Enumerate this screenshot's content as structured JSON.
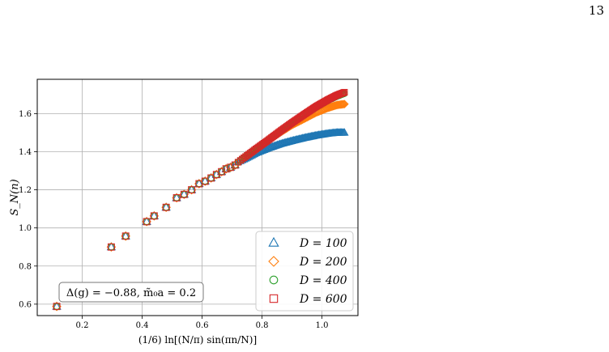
{
  "page_number": "13",
  "chart_data": {
    "type": "scatter",
    "title": "",
    "xlabel": "(1/6) ln[(N/π) sin(πn/N)]",
    "ylabel": "S_N(n)",
    "xlim": [
      0.05,
      1.12
    ],
    "ylim": [
      0.54,
      1.78
    ],
    "xticks": [
      0.2,
      0.4,
      0.6,
      0.8,
      1.0
    ],
    "yticks": [
      0.6,
      0.8,
      1.0,
      1.2,
      1.4,
      1.6
    ],
    "xtick_labels": [
      "0.2",
      "0.4",
      "0.6",
      "0.8",
      "1.0"
    ],
    "ytick_labels": [
      "0.6",
      "0.8",
      "1.0",
      "1.2",
      "1.4",
      "1.6"
    ],
    "grid": true,
    "legend_position": "lower-right",
    "annotation": "Δ(g) = −0.88, m̃₀a = 0.2",
    "common_points": {
      "x": [
        0.115,
        0.297,
        0.345,
        0.415,
        0.44,
        0.48,
        0.515,
        0.54,
        0.565,
        0.59,
        0.61,
        0.63,
        0.648,
        0.665,
        0.68,
        0.695,
        0.71
      ],
      "y": [
        0.588,
        0.9,
        0.957,
        1.033,
        1.063,
        1.108,
        1.158,
        1.176,
        1.2,
        1.232,
        1.245,
        1.262,
        1.28,
        1.295,
        1.31,
        1.318,
        1.33
      ]
    },
    "dense_from": 0.72,
    "series": [
      {
        "name": "D = 100",
        "marker": "triangle",
        "color": "#1f77b4",
        "x": [
          0.72,
          0.75,
          0.78,
          0.82,
          0.86,
          0.9,
          0.94,
          0.98,
          1.02,
          1.05,
          1.075
        ],
        "y": [
          1.345,
          1.368,
          1.393,
          1.418,
          1.44,
          1.457,
          1.472,
          1.485,
          1.495,
          1.5,
          1.5
        ]
      },
      {
        "name": "D = 200",
        "marker": "diamond",
        "color": "#ff7f0e",
        "x": [
          0.72,
          0.75,
          0.78,
          0.82,
          0.86,
          0.9,
          0.94,
          0.98,
          1.02,
          1.05,
          1.075
        ],
        "y": [
          1.345,
          1.38,
          1.412,
          1.458,
          1.5,
          1.54,
          1.572,
          1.605,
          1.63,
          1.645,
          1.65
        ]
      },
      {
        "name": "D = 400",
        "marker": "circle",
        "color": "#2ca02c",
        "x": [
          0.72,
          0.75,
          0.78,
          0.82,
          0.86,
          0.9,
          0.94,
          0.98,
          1.02,
          1.05,
          1.075
        ],
        "y": [
          1.345,
          1.38,
          1.415,
          1.46,
          1.507,
          1.55,
          1.592,
          1.632,
          1.668,
          1.69,
          1.705
        ]
      },
      {
        "name": "D = 600",
        "marker": "square",
        "color": "#d62728",
        "x": [
          0.72,
          0.75,
          0.78,
          0.82,
          0.86,
          0.9,
          0.94,
          0.98,
          1.02,
          1.05,
          1.075
        ],
        "y": [
          1.345,
          1.38,
          1.415,
          1.46,
          1.507,
          1.552,
          1.595,
          1.637,
          1.673,
          1.697,
          1.712
        ]
      }
    ]
  }
}
